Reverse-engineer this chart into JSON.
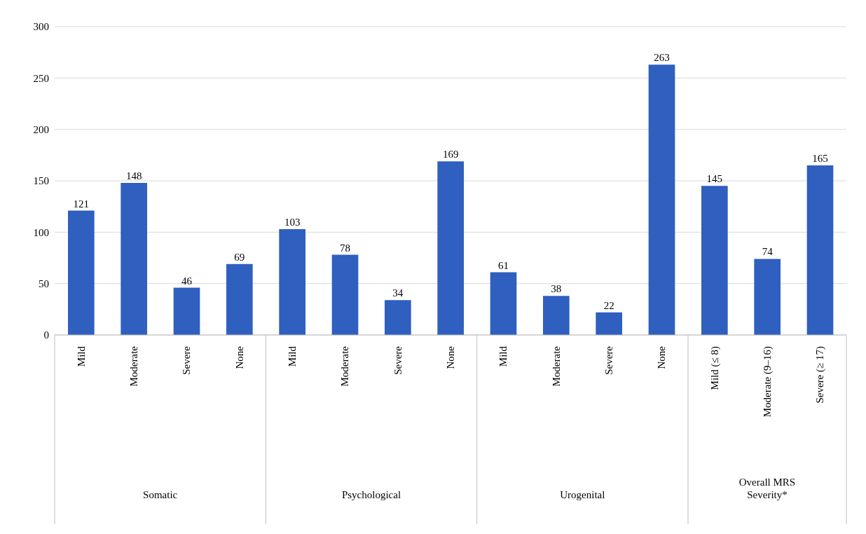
{
  "chart_data": {
    "type": "bar",
    "categories": [
      "Mild",
      "Moderate",
      "Severe",
      "None",
      "Mild",
      "Moderate",
      "Severe",
      "None",
      "Mild",
      "Moderate",
      "Severe",
      "None",
      "Mild (≤ 8)",
      "Moderate (9–16)",
      "Severe (≥ 17)"
    ],
    "values": [
      121,
      148,
      46,
      69,
      103,
      78,
      34,
      169,
      61,
      38,
      22,
      263,
      145,
      74,
      165
    ],
    "color": "#2f5fbf",
    "ylim": [
      0,
      300
    ],
    "yticks": [
      0,
      50,
      100,
      150,
      200,
      250,
      300
    ],
    "grid": "y",
    "data_labels": true,
    "annotations": [
      "Somatic",
      "Psychological",
      "Urogenital",
      "Overall MRS Severity*"
    ]
  }
}
